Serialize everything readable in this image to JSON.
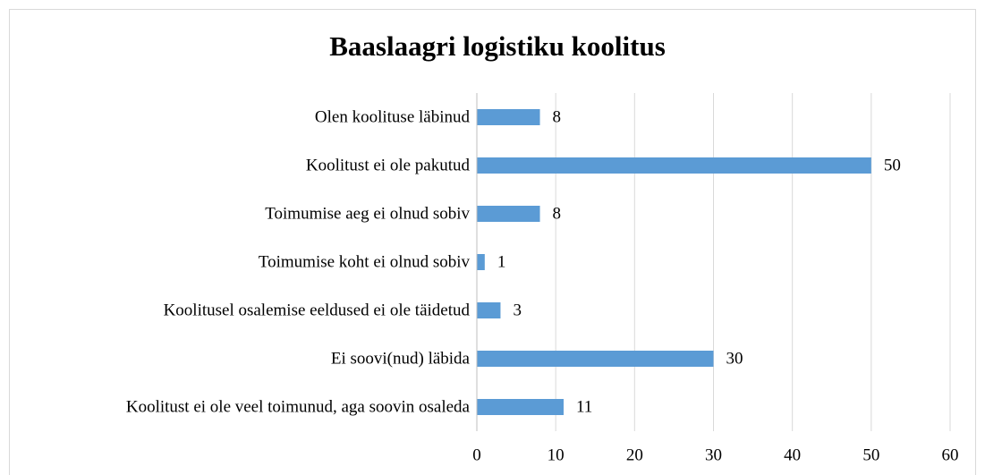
{
  "chart_data": {
    "type": "bar",
    "orientation": "horizontal",
    "title": "Baaslaagri logistiku koolitus",
    "categories": [
      "Olen koolituse läbinud",
      "Koolitust ei ole pakutud",
      "Toimumise aeg ei olnud sobiv",
      "Toimumise koht ei olnud sobiv",
      "Koolitusel osalemise eeldused ei ole täidetud",
      "Ei soovi(nud) läbida",
      "Koolitust ei ole veel toimunud, aga soovin osaleda"
    ],
    "values": [
      8,
      50,
      8,
      1,
      3,
      30,
      11
    ],
    "color": "#5b9bd5",
    "xlim": [
      0,
      60
    ],
    "xticks": [
      0,
      10,
      20,
      30,
      40,
      50,
      60
    ],
    "grid": true
  }
}
